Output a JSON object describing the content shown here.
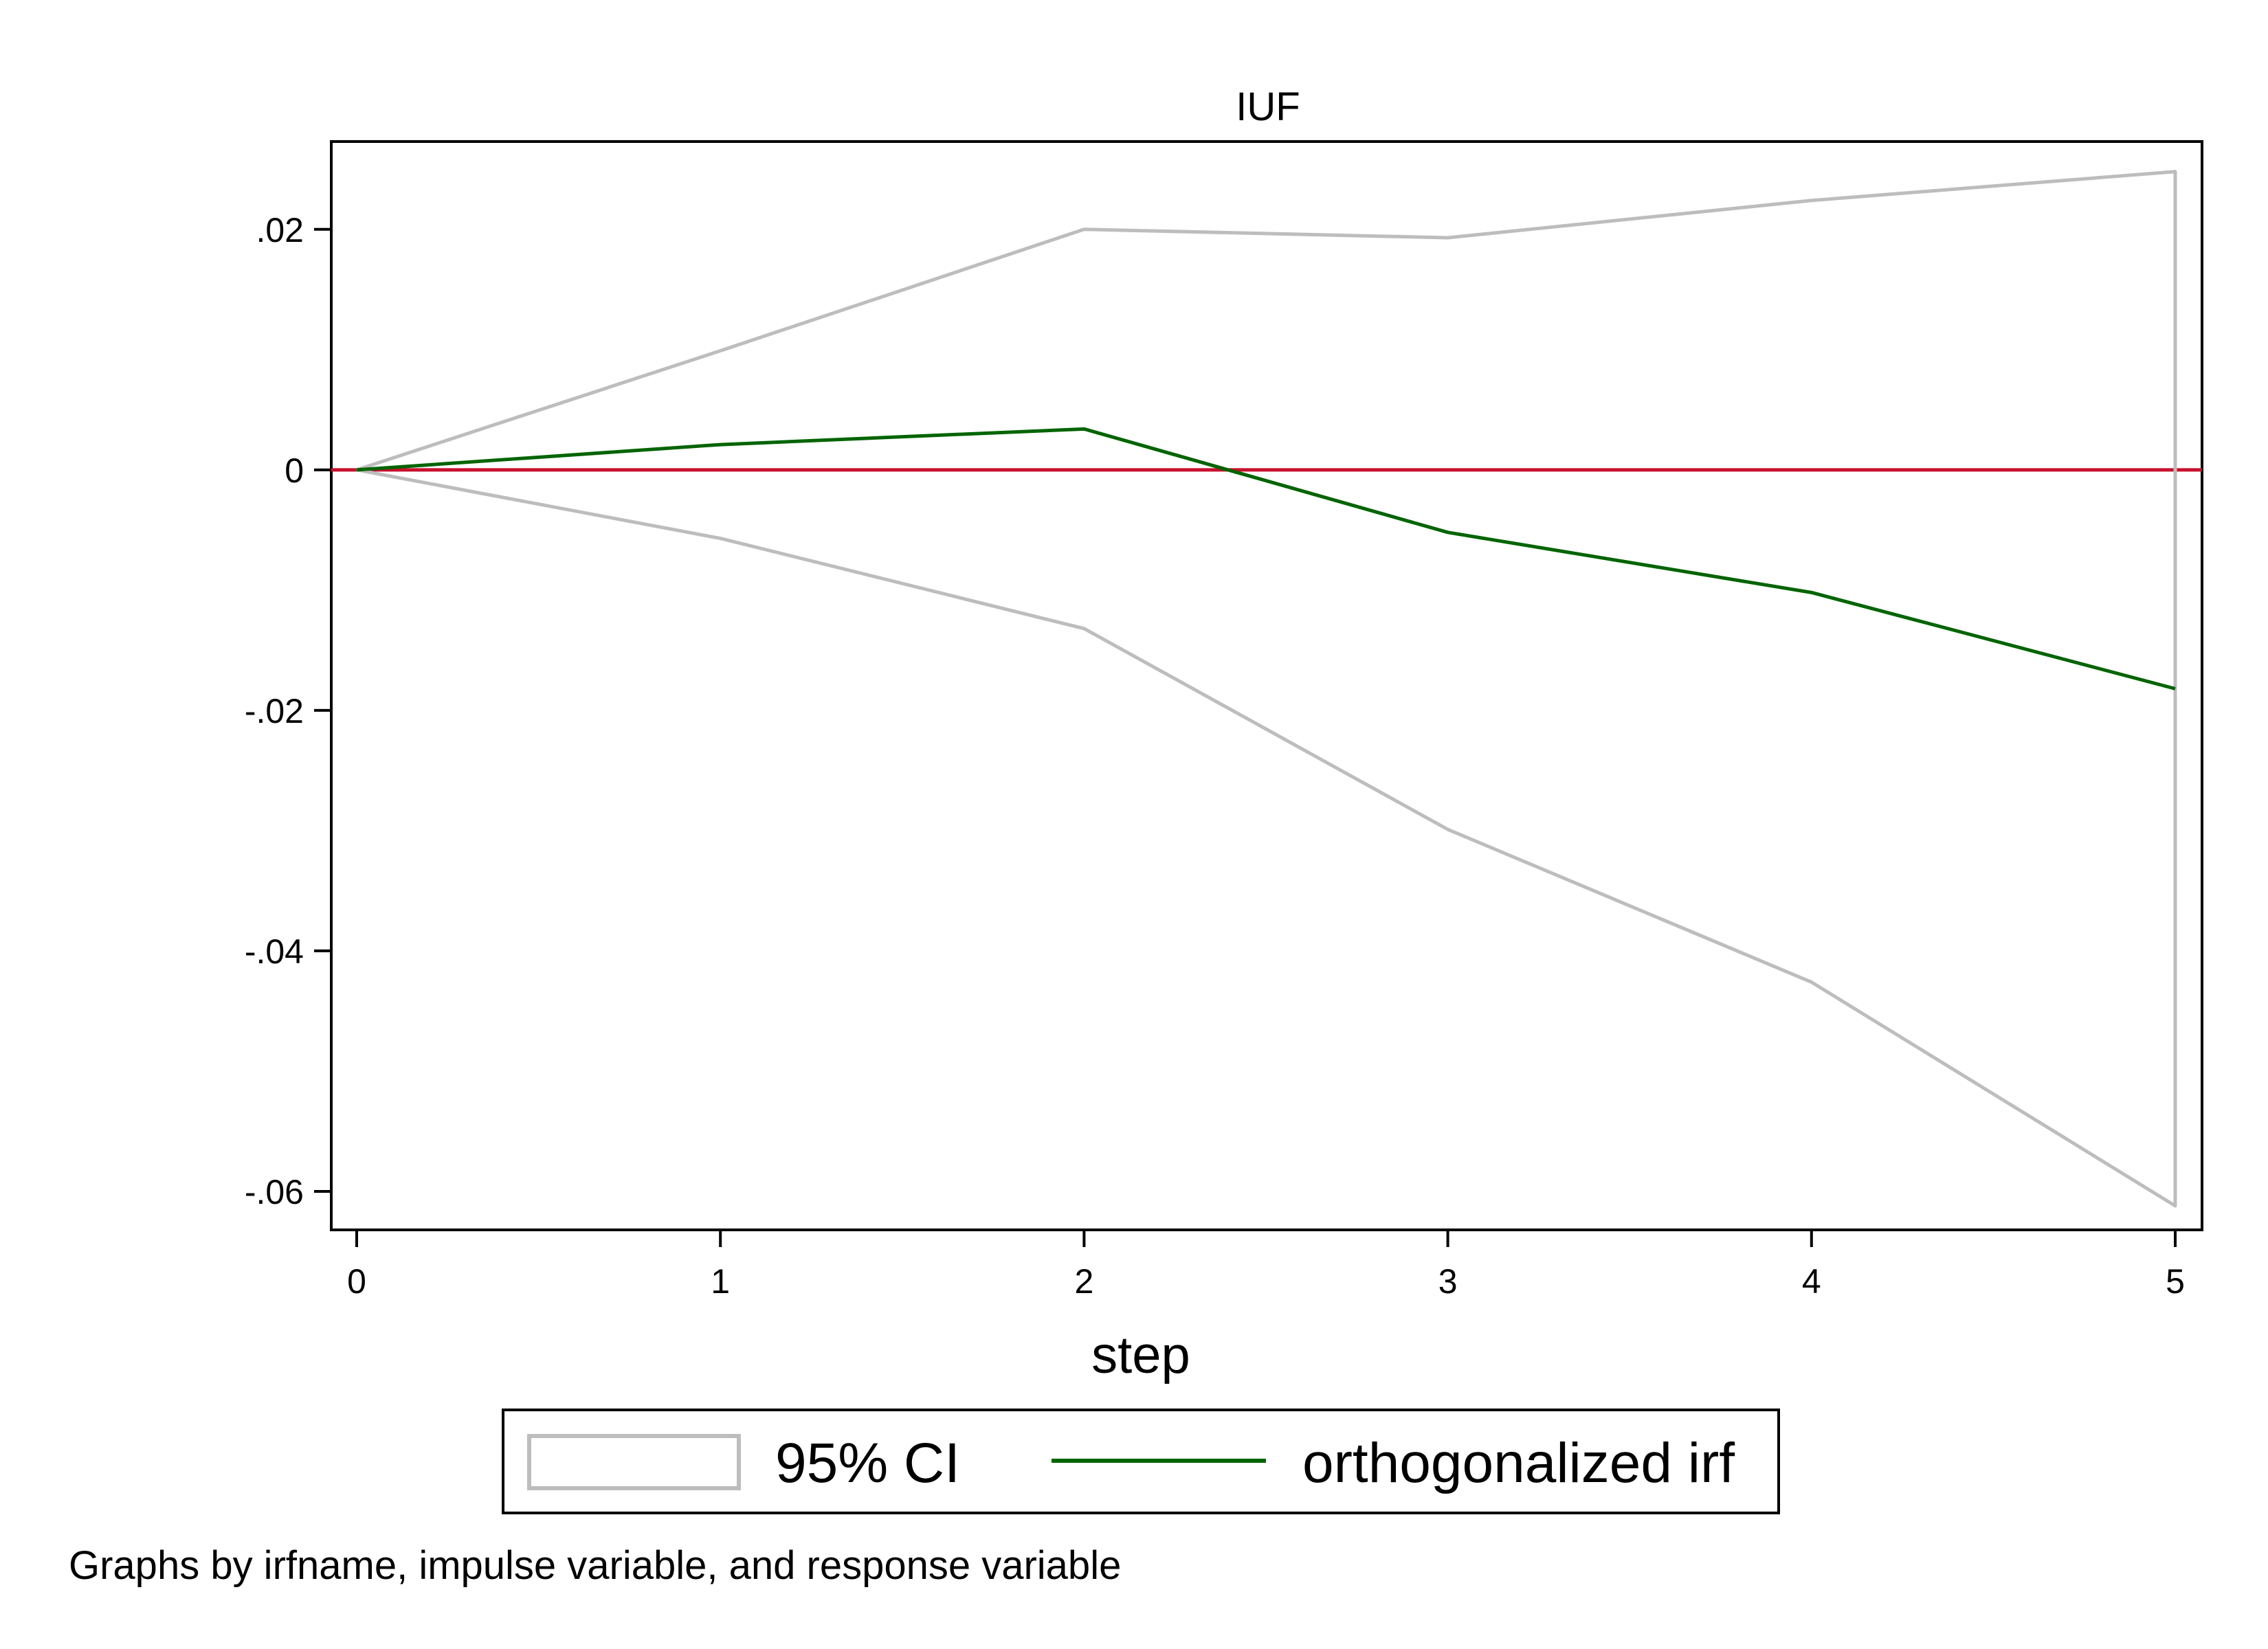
{
  "chart_data": {
    "type": "line",
    "title": "IUF",
    "xlabel": "step",
    "ylabel": "",
    "x": [
      0,
      1,
      2,
      3,
      4,
      5
    ],
    "xlim": [
      0,
      5
    ],
    "ylim": [
      -0.0632,
      0.0273
    ],
    "x_ticks": [
      0,
      1,
      2,
      3,
      4,
      5
    ],
    "x_tick_labels": [
      "0",
      "1",
      "2",
      "3",
      "4",
      "5"
    ],
    "y_ticks": [
      0.02,
      0,
      -0.02,
      -0.04,
      -0.06
    ],
    "y_tick_labels": [
      ".02",
      "0",
      "-.02",
      "-.04",
      "-.06"
    ],
    "reference_line": {
      "y": 0,
      "color": "#c8102e"
    },
    "series": [
      {
        "name": "95% CI",
        "role": "ci_upper",
        "values": [
          0,
          0.0099,
          0.02,
          0.0193,
          0.0224,
          0.0248
        ],
        "color": "#bdbdbd"
      },
      {
        "name": "95% CI",
        "role": "ci_lower",
        "values": [
          0,
          -0.0057,
          -0.0132,
          -0.0299,
          -0.0426,
          -0.0612
        ],
        "color": "#bdbdbd"
      },
      {
        "name": "orthogonalized irf",
        "role": "irf",
        "values": [
          0,
          0.0021,
          0.0034,
          -0.0052,
          -0.0102,
          -0.0182
        ],
        "color": "#006400"
      }
    ],
    "legend": {
      "placement": "bottom",
      "items": [
        {
          "label": "95% CI",
          "symbol": "box",
          "color": "#bdbdbd"
        },
        {
          "label": "orthogonalized irf",
          "symbol": "line",
          "color": "#006400"
        }
      ]
    },
    "grid": false,
    "note": "Graphs by irfname, impulse variable, and response variable"
  }
}
